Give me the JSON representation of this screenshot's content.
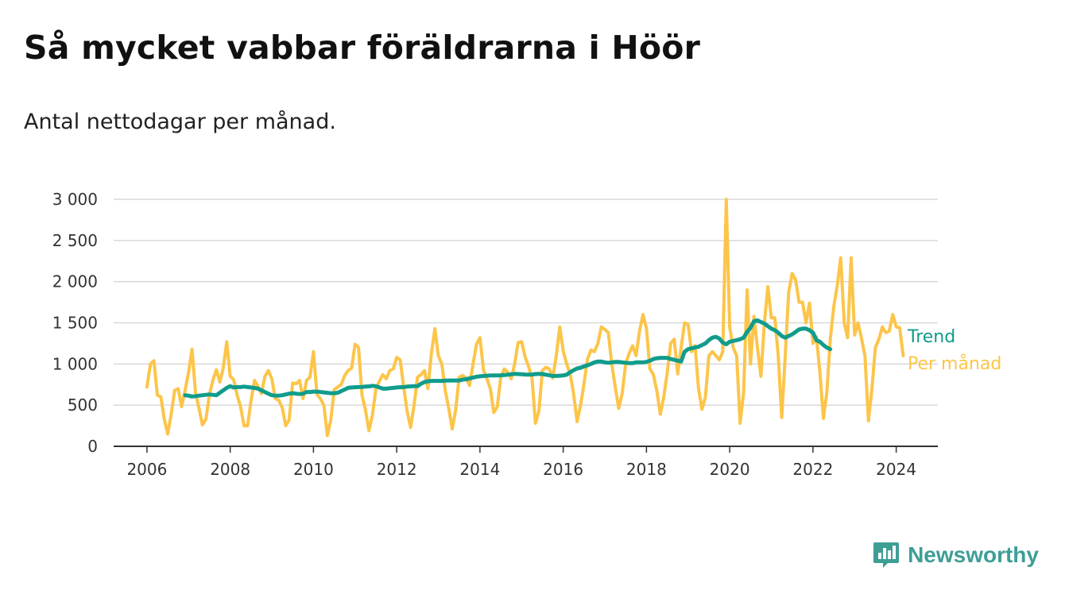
{
  "title": "Så mycket vabbar föräldrarna i Höör",
  "subtitle": "Antal nettodagar per månad.",
  "brand": {
    "name": "Newsworthy",
    "icon": "newsworthy-logo-icon",
    "color": "#3e9e96"
  },
  "chart_data": {
    "type": "line",
    "ylim": [
      0,
      3000
    ],
    "xlim": [
      2005.2,
      2025.0
    ],
    "y_ticks": [
      0,
      500,
      1000,
      1500,
      2000,
      2500,
      3000
    ],
    "y_tick_labels": [
      "0",
      "500",
      "1 000",
      "1 500",
      "2 000",
      "2 500",
      "3 000"
    ],
    "x_ticks": [
      2006,
      2008,
      2010,
      2012,
      2014,
      2016,
      2018,
      2020,
      2022,
      2024
    ],
    "x_tick_labels": [
      "2006",
      "2008",
      "2010",
      "2012",
      "2014",
      "2016",
      "2018",
      "2020",
      "2022",
      "2024"
    ],
    "grid": true,
    "legend": "direct labels at right end of lines",
    "series": [
      {
        "name": "Per månad",
        "color": "#fcc54a",
        "start": "2006-01",
        "values": [
          720,
          1000,
          1040,
          620,
          600,
          330,
          150,
          400,
          680,
          700,
          480,
          680,
          900,
          1180,
          650,
          460,
          260,
          330,
          630,
          800,
          930,
          780,
          950,
          1270,
          850,
          810,
          620,
          480,
          250,
          250,
          550,
          800,
          730,
          640,
          850,
          920,
          820,
          580,
          560,
          470,
          250,
          320,
          770,
          760,
          800,
          580,
          800,
          840,
          1150,
          630,
          580,
          500,
          130,
          320,
          690,
          720,
          750,
          860,
          920,
          950,
          1240,
          1200,
          620,
          440,
          190,
          380,
          700,
          790,
          870,
          820,
          920,
          940,
          1080,
          1050,
          720,
          430,
          230,
          500,
          840,
          870,
          920,
          700,
          1130,
          1430,
          1100,
          1000,
          680,
          460,
          210,
          440,
          840,
          860,
          830,
          740,
          1000,
          1240,
          1320,
          930,
          820,
          700,
          410,
          480,
          840,
          940,
          900,
          820,
          1000,
          1260,
          1270,
          1090,
          970,
          830,
          280,
          430,
          920,
          960,
          940,
          830,
          1100,
          1450,
          1160,
          1000,
          880,
          640,
          300,
          500,
          760,
          1060,
          1170,
          1150,
          1250,
          1450,
          1420,
          1380,
          1000,
          720,
          460,
          640,
          1000,
          1130,
          1220,
          1100,
          1400,
          1600,
          1430,
          940,
          870,
          670,
          390,
          600,
          900,
          1250,
          1300,
          880,
          1200,
          1500,
          1480,
          1150,
          1220,
          700,
          450,
          600,
          1100,
          1150,
          1100,
          1050,
          1150,
          3000,
          1450,
          1200,
          1100,
          280,
          650,
          1900,
          1000,
          1580,
          1200,
          850,
          1500,
          1940,
          1560,
          1560,
          1100,
          350,
          1100,
          1870,
          2100,
          2020,
          1750,
          1750,
          1500,
          1740,
          1250,
          1330,
          900,
          340,
          650,
          1300,
          1700,
          1950,
          2290,
          1500,
          1320,
          2290,
          1350,
          1500,
          1310,
          1100,
          310,
          700,
          1200,
          1300,
          1450,
          1380,
          1400,
          1600,
          1450,
          1440,
          1100
        ]
      },
      {
        "name": "Trend",
        "color": "#109c8c",
        "start": "2006-12",
        "values": [
          620,
          615,
          605,
          610,
          615,
          620,
          625,
          630,
          625,
          620,
          650,
          680,
          710,
          730,
          715,
          720,
          720,
          725,
          720,
          715,
          710,
          700,
          680,
          660,
          640,
          620,
          615,
          615,
          620,
          630,
          640,
          645,
          640,
          635,
          640,
          660,
          660,
          665,
          665,
          660,
          655,
          650,
          645,
          645,
          650,
          670,
          690,
          710,
          715,
          718,
          720,
          722,
          725,
          728,
          735,
          730,
          715,
          700,
          700,
          705,
          710,
          715,
          718,
          720,
          725,
          728,
          730,
          730,
          760,
          780,
          790,
          795,
          795,
          795,
          795,
          798,
          800,
          800,
          800,
          800,
          810,
          815,
          825,
          835,
          845,
          850,
          855,
          858,
          860,
          860,
          860,
          862,
          865,
          870,
          875,
          880,
          878,
          875,
          872,
          870,
          872,
          878,
          880,
          878,
          870,
          862,
          855,
          855,
          858,
          860,
          870,
          900,
          925,
          945,
          955,
          970,
          985,
          1000,
          1020,
          1030,
          1030,
          1020,
          1015,
          1020,
          1025,
          1025,
          1020,
          1015,
          1010,
          1010,
          1020,
          1020,
          1020,
          1025,
          1040,
          1060,
          1070,
          1075,
          1075,
          1075,
          1060,
          1050,
          1040,
          1030,
          1150,
          1180,
          1190,
          1200,
          1210,
          1230,
          1250,
          1290,
          1320,
          1330,
          1310,
          1260,
          1240,
          1270,
          1280,
          1290,
          1300,
          1320,
          1390,
          1440,
          1520,
          1530,
          1510,
          1490,
          1460,
          1430,
          1410,
          1380,
          1340,
          1320,
          1340,
          1360,
          1390,
          1420,
          1430,
          1430,
          1410,
          1380,
          1290,
          1270,
          1230,
          1200,
          1180
        ]
      }
    ]
  }
}
